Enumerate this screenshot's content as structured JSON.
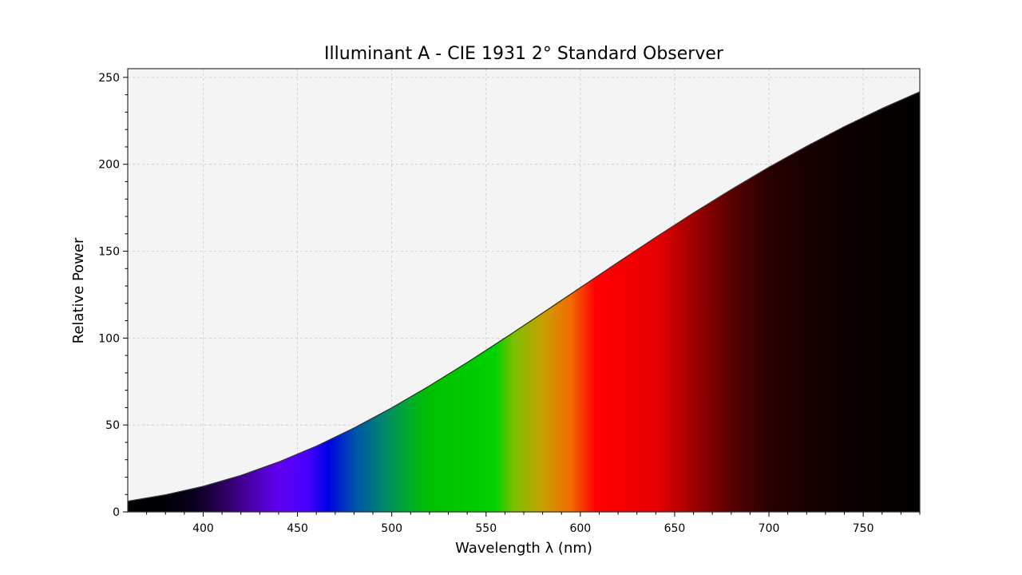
{
  "chart_data": {
    "type": "area",
    "title": "Illuminant A - CIE 1931 2° Standard Observer",
    "xlabel": "Wavelength λ (nm)",
    "ylabel": "Relative Power",
    "xlim": [
      360,
      780
    ],
    "ylim": [
      0,
      255
    ],
    "x_ticks": [
      400,
      450,
      500,
      550,
      600,
      650,
      700,
      750
    ],
    "y_ticks": [
      0,
      50,
      100,
      150,
      200,
      250
    ],
    "grid": true,
    "series": [
      {
        "x": [
          360,
          380,
          400,
          420,
          440,
          460,
          480,
          500,
          520,
          540,
          560,
          580,
          600,
          620,
          640,
          660,
          680,
          700,
          720,
          740,
          760,
          780
        ],
        "values": [
          6.14,
          9.8,
          14.71,
          20.99,
          28.7,
          37.81,
          48.24,
          59.86,
          72.5,
          85.95,
          100.0,
          114.44,
          129.04,
          143.62,
          157.98,
          171.96,
          185.43,
          198.26,
          210.36,
          221.67,
          232.12,
          241.68
        ]
      }
    ],
    "colors": {
      "background": "#f4f4f4",
      "curve": "#333333",
      "spectrum": [
        {
          "nm": 360,
          "color": "#000000"
        },
        {
          "nm": 380,
          "color": "#000005"
        },
        {
          "nm": 395,
          "color": "#0a001e"
        },
        {
          "nm": 410,
          "color": "#2a0058"
        },
        {
          "nm": 425,
          "color": "#4a00a8"
        },
        {
          "nm": 440,
          "color": "#6000f0"
        },
        {
          "nm": 455,
          "color": "#4a00ff"
        },
        {
          "nm": 466,
          "color": "#0000e6"
        },
        {
          "nm": 480,
          "color": "#0050b0"
        },
        {
          "nm": 495,
          "color": "#008470"
        },
        {
          "nm": 510,
          "color": "#00ae2a"
        },
        {
          "nm": 520,
          "color": "#00c000"
        },
        {
          "nm": 555,
          "color": "#00d200"
        },
        {
          "nm": 565,
          "color": "#7cbf00"
        },
        {
          "nm": 580,
          "color": "#c8a000"
        },
        {
          "nm": 595,
          "color": "#f06c00"
        },
        {
          "nm": 608,
          "color": "#ff0000"
        },
        {
          "nm": 640,
          "color": "#e80000"
        },
        {
          "nm": 660,
          "color": "#a00000"
        },
        {
          "nm": 680,
          "color": "#5a0000"
        },
        {
          "nm": 700,
          "color": "#280000"
        },
        {
          "nm": 730,
          "color": "#120000"
        },
        {
          "nm": 760,
          "color": "#050000"
        },
        {
          "nm": 780,
          "color": "#000000"
        }
      ]
    }
  }
}
